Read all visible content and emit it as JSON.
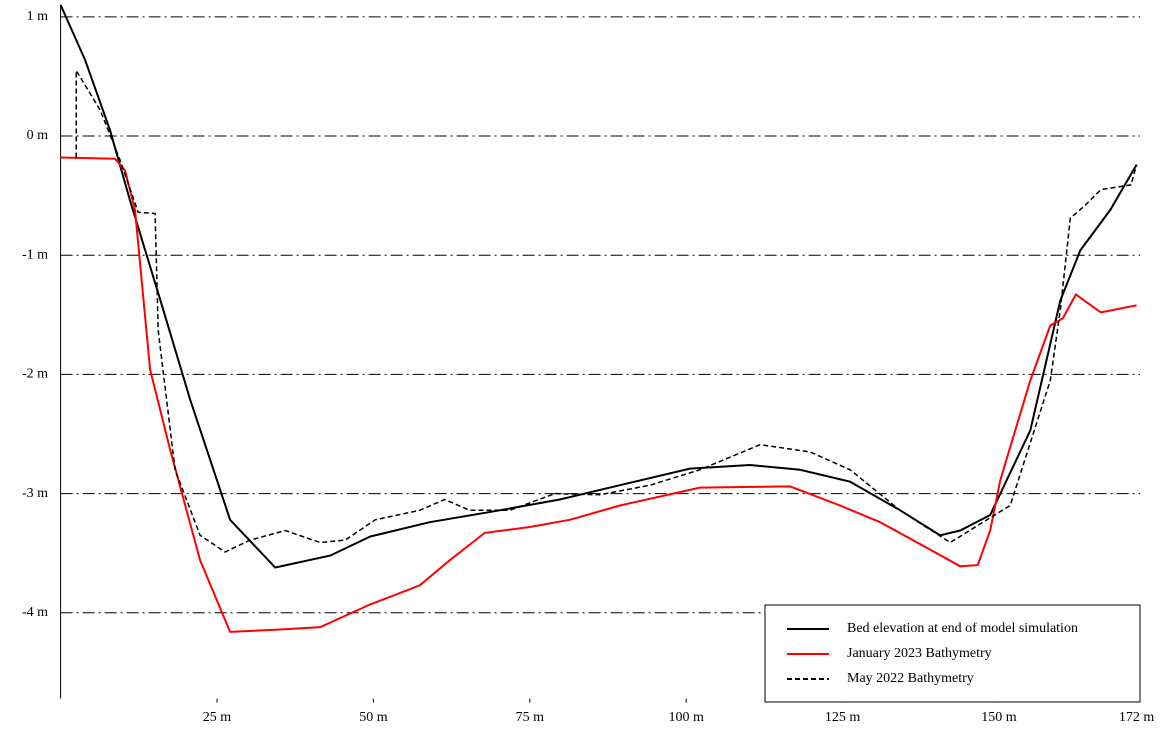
{
  "chart_data": {
    "type": "line",
    "xlim": [
      0,
      172
    ],
    "xticks": [
      {
        "value": 25,
        "label": "25 m"
      },
      {
        "value": 50,
        "label": "50 m"
      },
      {
        "value": 75,
        "label": "75 m"
      },
      {
        "value": 100,
        "label": "100 m"
      },
      {
        "value": 125,
        "label": "125 m"
      },
      {
        "value": 150,
        "label": "150 m"
      },
      {
        "value": 172,
        "label": "172 m"
      }
    ],
    "ylim": [
      -4.72,
      1.1
    ],
    "yticks": [
      {
        "value": 1,
        "label": "1 m"
      },
      {
        "value": 0,
        "label": "0 m"
      },
      {
        "value": -1,
        "label": "-1 m"
      },
      {
        "value": -2,
        "label": "-2 m"
      },
      {
        "value": -3,
        "label": "-3 m"
      },
      {
        "value": -4,
        "label": "-4 m"
      }
    ],
    "grid": true,
    "legend": "lower right",
    "series": [
      {
        "name": "Bed elevation at end of model simulation",
        "color": "#000000",
        "dash": "solid",
        "x": [
          0,
          3.9,
          7.9,
          11.1,
          15.9,
          20.7,
          27.1,
          34.3,
          43.1,
          49.5,
          59.0,
          70.2,
          79.8,
          89.4,
          100.6,
          110.2,
          118.2,
          126.2,
          134.2,
          140.6,
          143.8,
          148.6,
          155.0,
          159.8,
          163.0,
          167.8,
          172
        ],
        "values": [
          1.1,
          0.64,
          0.05,
          -0.54,
          -1.37,
          -2.21,
          -3.22,
          -3.62,
          -3.52,
          -3.36,
          -3.24,
          -3.14,
          -3.05,
          -2.93,
          -2.79,
          -2.76,
          -2.8,
          -2.9,
          -3.14,
          -3.35,
          -3.31,
          -3.18,
          -2.47,
          -1.38,
          -0.96,
          -0.62,
          -0.24
        ]
      },
      {
        "name": "January 2023 Bathymetry",
        "color": "#ff0000",
        "dash": "solid",
        "x": [
          0,
          8.7,
          10.3,
          11.9,
          14.3,
          17.5,
          22.3,
          27.1,
          35.1,
          41.5,
          49.5,
          57.4,
          62.2,
          67.8,
          75.0,
          81.4,
          89.4,
          102.2,
          116.6,
          124.6,
          131.0,
          139.0,
          143.8,
          146.6,
          148.6,
          150.2,
          155.0,
          158.2,
          160.2,
          162.3,
          166.3,
          172
        ],
        "values": [
          -0.18,
          -0.19,
          -0.29,
          -0.62,
          -1.96,
          -2.63,
          -3.56,
          -4.16,
          -4.14,
          -4.12,
          -3.93,
          -3.77,
          -3.56,
          -3.33,
          -3.28,
          -3.22,
          -3.1,
          -2.95,
          -2.94,
          -3.1,
          -3.24,
          -3.47,
          -3.61,
          -3.6,
          -3.31,
          -2.89,
          -2.05,
          -1.59,
          -1.53,
          -1.33,
          -1.48,
          -1.42
        ]
      },
      {
        "name": "May 2022 Bathymetry",
        "color": "#000000",
        "dash": "dashed",
        "x": [
          2.5,
          2.5,
          6.3,
          9.5,
          12.4,
          15.1,
          15.6,
          18.3,
          22.3,
          26.3,
          30.3,
          35.9,
          41.5,
          45.5,
          50.3,
          57.4,
          61.4,
          65.4,
          71.8,
          79.0,
          86.2,
          94.2,
          102.2,
          111.8,
          119.8,
          126.2,
          134.2,
          142.2,
          151.8,
          158.2,
          159.8,
          161.4,
          163.8,
          166.3,
          171.1,
          172
        ],
        "values": [
          -0.18,
          0.55,
          0.22,
          -0.2,
          -0.64,
          -0.65,
          -1.63,
          -2.8,
          -3.35,
          -3.49,
          -3.39,
          -3.31,
          -3.41,
          -3.39,
          -3.22,
          -3.14,
          -3.05,
          -3.14,
          -3.14,
          -3.0,
          -3.01,
          -2.93,
          -2.8,
          -2.59,
          -2.65,
          -2.8,
          -3.14,
          -3.41,
          -3.1,
          -2.05,
          -1.46,
          -0.69,
          -0.58,
          -0.45,
          -0.41,
          -0.24
        ]
      }
    ]
  }
}
